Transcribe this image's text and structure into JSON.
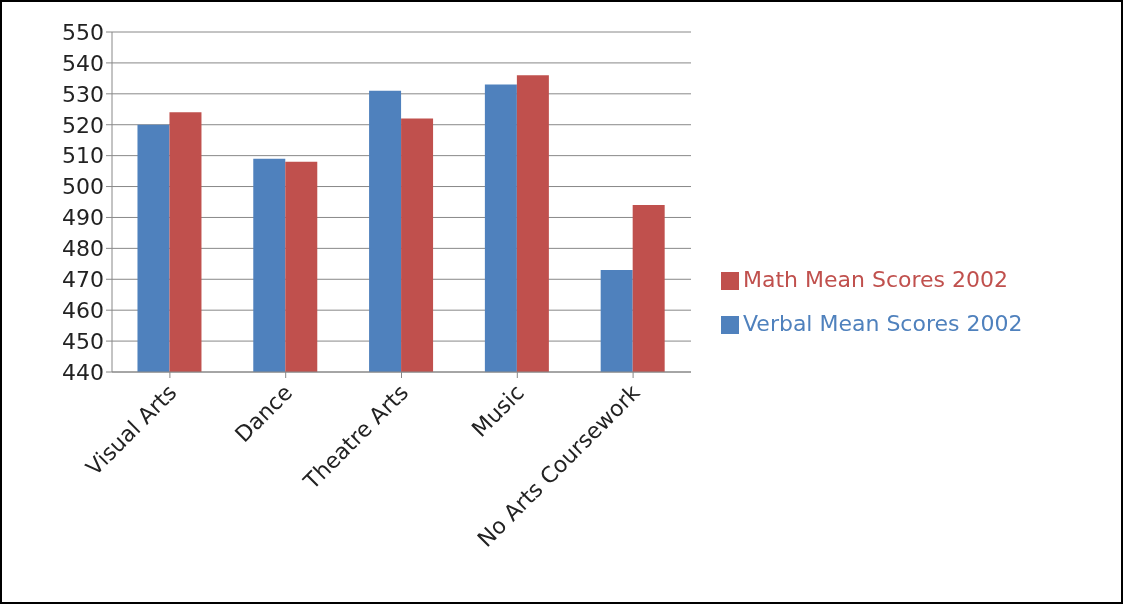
{
  "chart_data": {
    "type": "bar",
    "categories": [
      "Visual Arts",
      "Dance",
      "Theatre Arts",
      "Music",
      "No Arts Coursework"
    ],
    "series": [
      {
        "name": "Verbal Mean Scores 2002",
        "color": "#4f81bd",
        "values": [
          520,
          509,
          531,
          533,
          473
        ]
      },
      {
        "name": "Math Mean Scores 2002",
        "color": "#c0504d",
        "values": [
          524,
          508,
          522,
          536,
          494
        ]
      }
    ],
    "ylim": [
      440,
      550
    ],
    "yticks": [
      440,
      450,
      460,
      470,
      480,
      490,
      500,
      510,
      520,
      530,
      540,
      550
    ],
    "grid": "y",
    "legend": "right"
  }
}
